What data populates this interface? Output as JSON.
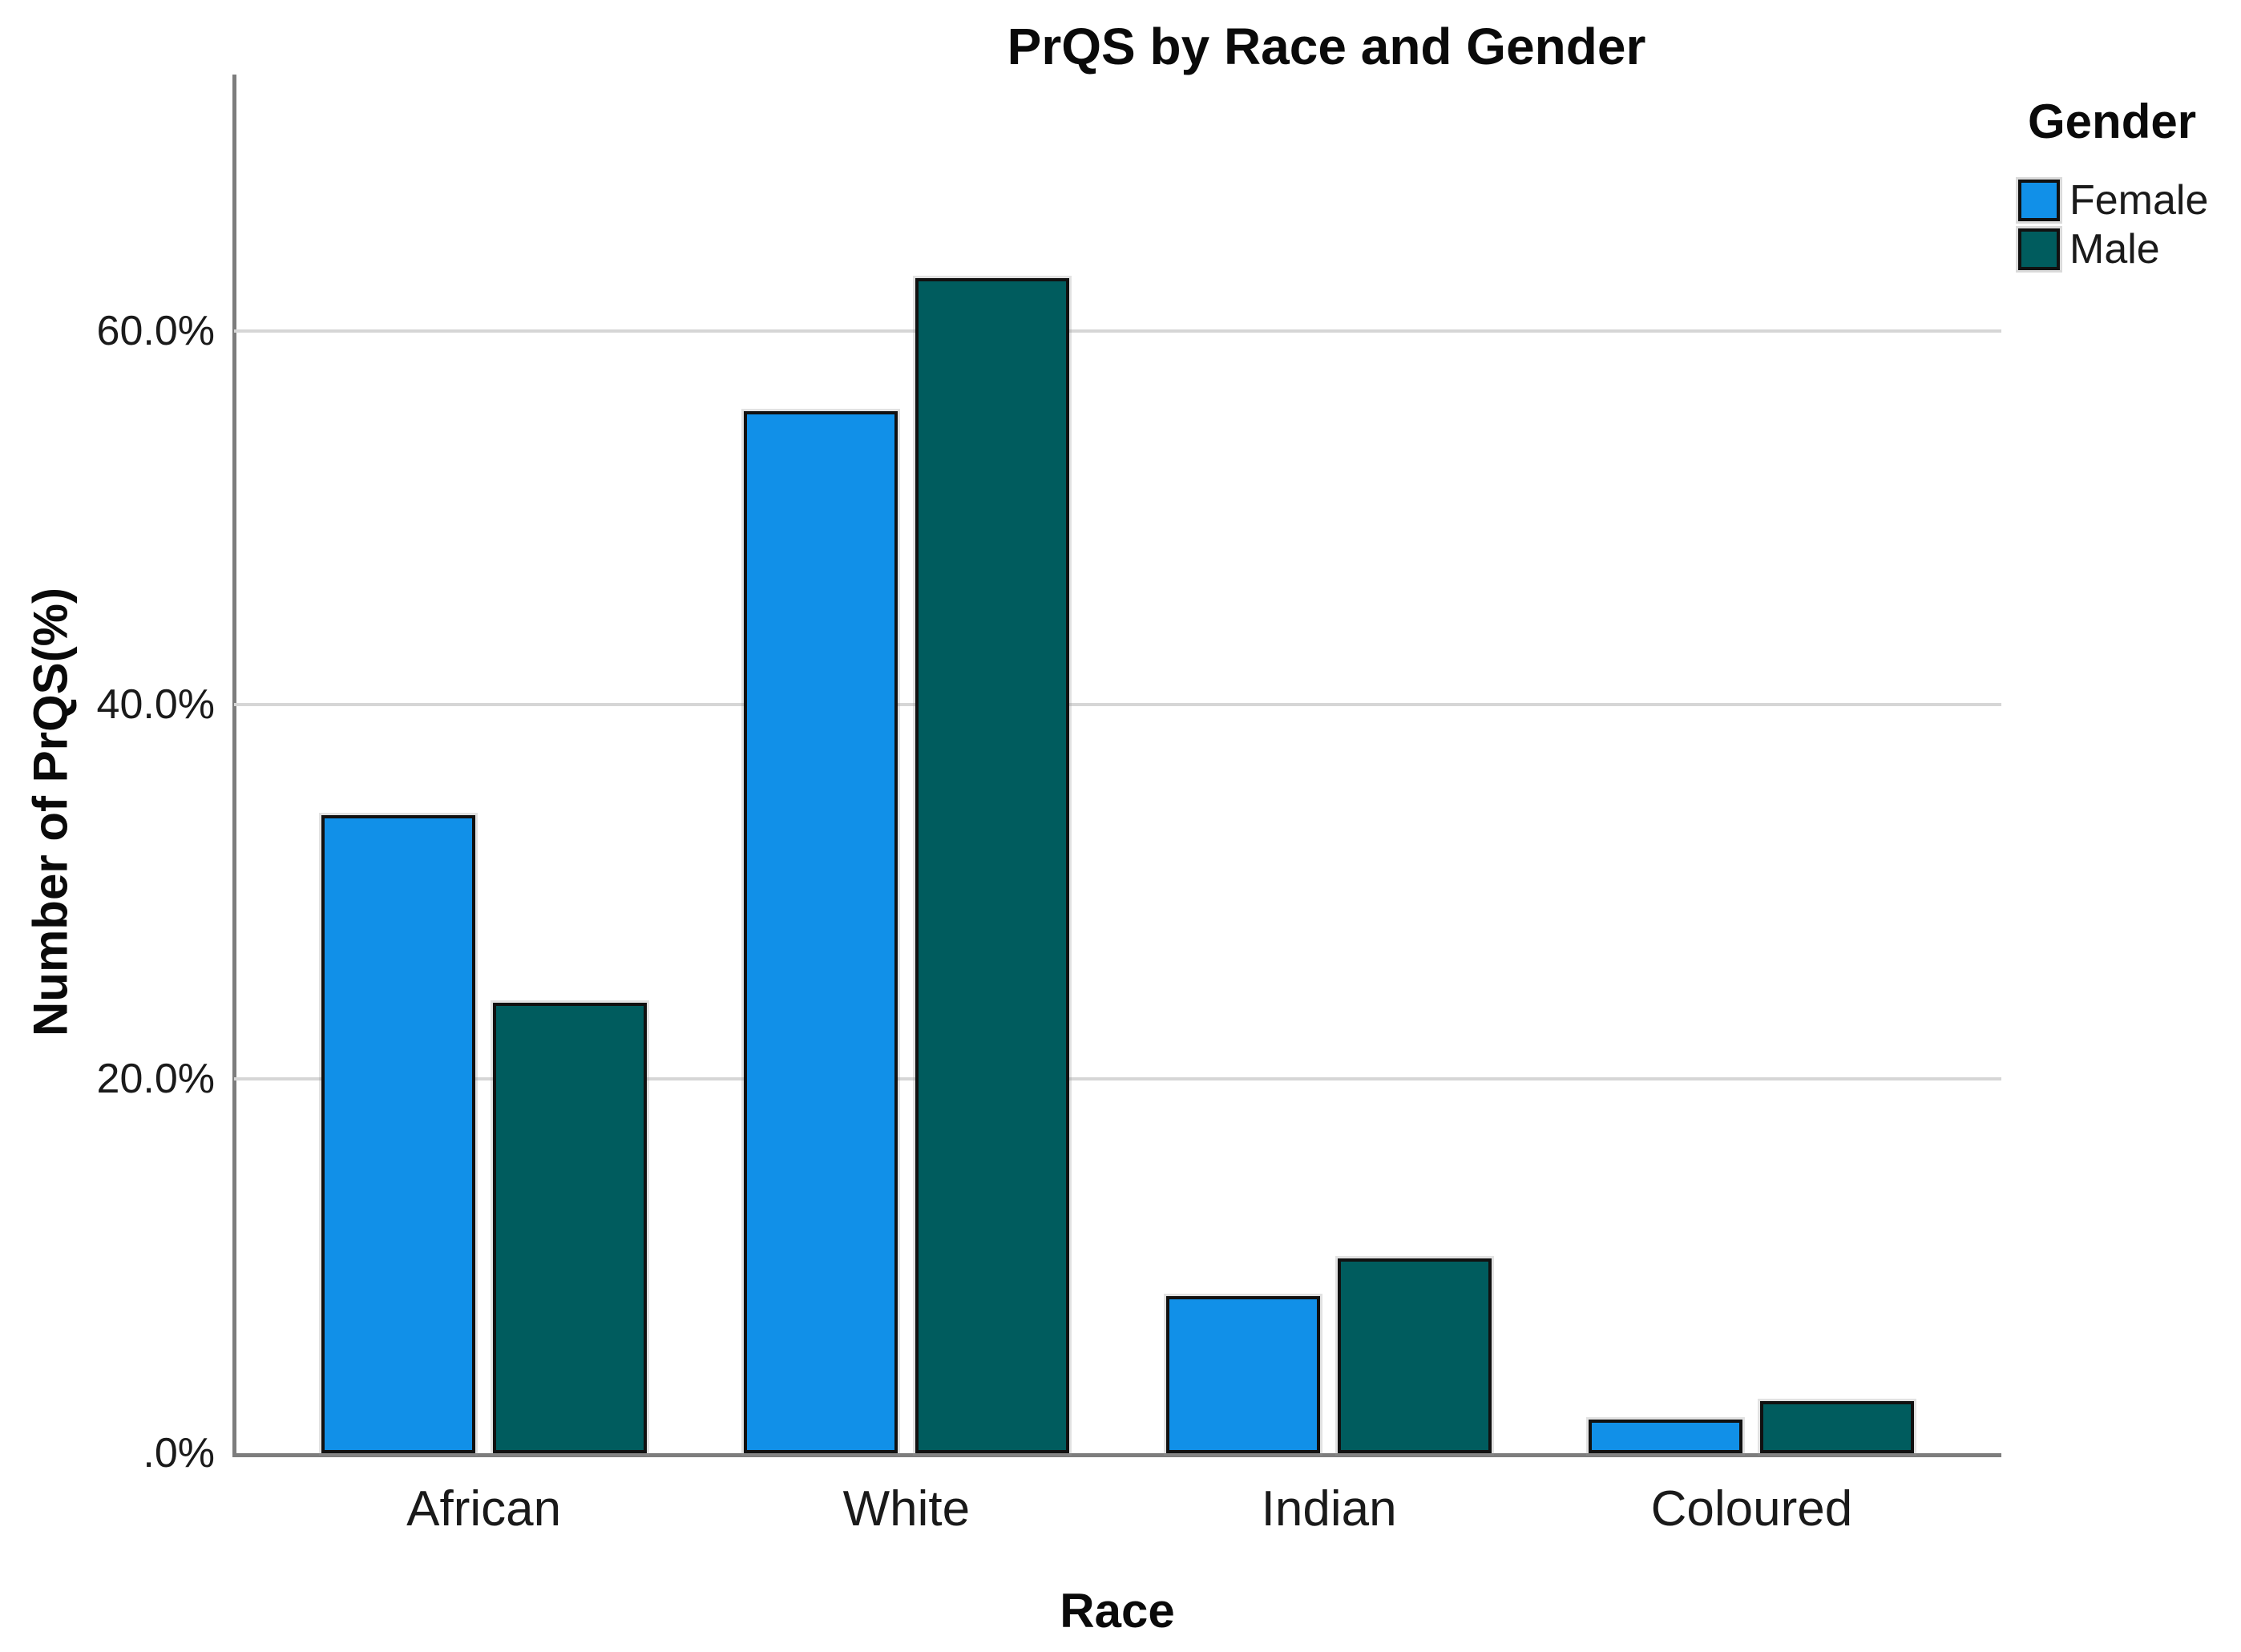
{
  "title": "PrQS by Race and Gender",
  "legend": {
    "title": "Gender",
    "entries": [
      {
        "label": "Female",
        "color": "#1190E8"
      },
      {
        "label": "Male",
        "color": "#005C5E"
      }
    ]
  },
  "axes": {
    "x_title": "Race",
    "y_title": "Number of PrQS(%)",
    "y_ticks": [
      {
        "label": ".0%",
        "value": 0
      },
      {
        "label": "20.0%",
        "value": 20
      },
      {
        "label": "40.0%",
        "value": 40
      },
      {
        "label": "60.0%",
        "value": 60
      }
    ],
    "gridline_values": [
      20,
      40,
      60
    ]
  },
  "chart_data": {
    "type": "bar",
    "title": "PrQS by Race and Gender",
    "xlabel": "Race",
    "ylabel": "Number of PrQS(%)",
    "categories": [
      "African",
      "White",
      "Indian",
      "Coloured"
    ],
    "series": [
      {
        "name": "Female",
        "color": "#1190E8",
        "values": [
          34.1,
          55.7,
          8.4,
          1.8
        ]
      },
      {
        "name": "Male",
        "color": "#005C5E",
        "values": [
          24.1,
          62.8,
          10.4,
          2.8
        ]
      }
    ],
    "ylim": [
      0,
      73.7
    ],
    "grid": "horizontal",
    "legend_position": "top-right"
  }
}
